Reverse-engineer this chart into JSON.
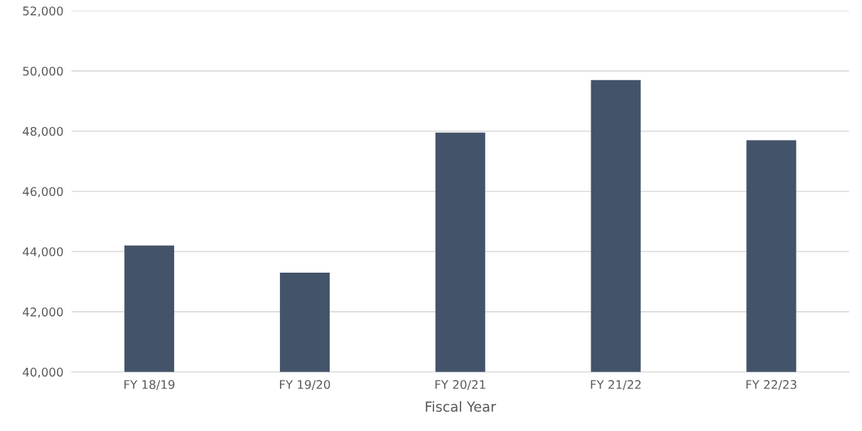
{
  "chart_data": {
    "type": "bar",
    "xlabel": "Fiscal Year",
    "categories": [
      "FY 18/19",
      "FY 19/20",
      "FY 20/21",
      "FY 21/22",
      "FY 22/23"
    ],
    "values": [
      44200,
      43300,
      47950,
      49700,
      47700
    ],
    "color": "#435369",
    "ylim": [
      40000,
      52000
    ],
    "yticks": [
      {
        "value": 40000,
        "label": "40,000"
      },
      {
        "value": 42000,
        "label": "42,000"
      },
      {
        "value": 44000,
        "label": "44,000"
      },
      {
        "value": 46000,
        "label": "46,000"
      },
      {
        "value": 48000,
        "label": "48,000"
      },
      {
        "value": 50000,
        "label": "50,000"
      },
      {
        "value": 52000,
        "label": "52,000"
      }
    ],
    "grid": "y",
    "legend": false
  }
}
